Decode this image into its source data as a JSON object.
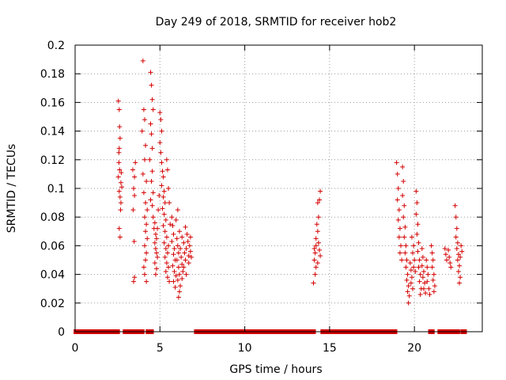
{
  "chart_data": {
    "type": "scatter",
    "title": "Day 249 of 2018, SRMTID for receiver hob2",
    "xlabel": "GPS time / hours",
    "ylabel": "SRMTID / TECUs",
    "xlim": [
      0,
      24
    ],
    "ylim": [
      0,
      0.2
    ],
    "x_ticks": [
      0,
      5,
      10,
      15,
      20
    ],
    "y_ticks": [
      0,
      0.02,
      0.04,
      0.06,
      0.08,
      0.1,
      0.12,
      0.14,
      0.16,
      0.18,
      0.2
    ],
    "x_tick_labels": [
      "0",
      "5",
      "10",
      "15",
      "20"
    ],
    "y_tick_labels": [
      "0",
      "0.02",
      "0.04",
      "0.06",
      "0.08",
      "0.1",
      "0.12",
      "0.14",
      "0.16",
      "0.18",
      "0.2"
    ],
    "grid": true,
    "marker": "+",
    "color": "#d40000",
    "zero_segments": [
      [
        0.05,
        2.5
      ],
      [
        2.95,
        3.3
      ],
      [
        3.55,
        3.95
      ],
      [
        4.3,
        4.5
      ],
      [
        7.15,
        14.05
      ],
      [
        14.6,
        18.85
      ],
      [
        20.95,
        21.05
      ],
      [
        21.5,
        21.85
      ],
      [
        22.0,
        22.15
      ],
      [
        22.25,
        22.35
      ],
      [
        22.45,
        22.55
      ],
      [
        22.85,
        22.95
      ]
    ],
    "series": [
      {
        "name": "SRMTID",
        "points": [
          [
            2.55,
            0.161
          ],
          [
            2.6,
            0.155
          ],
          [
            2.62,
            0.143
          ],
          [
            2.65,
            0.135
          ],
          [
            2.6,
            0.128
          ],
          [
            2.58,
            0.118
          ],
          [
            2.62,
            0.113
          ],
          [
            2.55,
            0.108
          ],
          [
            2.7,
            0.104
          ],
          [
            2.6,
            0.098
          ],
          [
            2.65,
            0.094
          ],
          [
            2.7,
            0.09
          ],
          [
            2.68,
            0.085
          ],
          [
            2.6,
            0.072
          ],
          [
            2.65,
            0.066
          ],
          [
            2.75,
            0.101
          ],
          [
            2.72,
            0.111
          ],
          [
            2.58,
            0.125
          ],
          [
            3.4,
            0.113
          ],
          [
            3.5,
            0.108
          ],
          [
            3.45,
            0.1
          ],
          [
            3.5,
            0.095
          ],
          [
            3.42,
            0.085
          ],
          [
            3.48,
            0.063
          ],
          [
            3.5,
            0.038
          ],
          [
            3.45,
            0.035
          ],
          [
            3.55,
            0.118
          ],
          [
            4.0,
            0.189
          ],
          [
            4.05,
            0.155
          ],
          [
            4.1,
            0.148
          ],
          [
            3.95,
            0.14
          ],
          [
            4.15,
            0.13
          ],
          [
            4.1,
            0.12
          ],
          [
            4.0,
            0.11
          ],
          [
            4.2,
            0.105
          ],
          [
            4.05,
            0.097
          ],
          [
            4.15,
            0.09
          ],
          [
            4.25,
            0.085
          ],
          [
            4.1,
            0.08
          ],
          [
            4.2,
            0.075
          ],
          [
            4.15,
            0.07
          ],
          [
            4.25,
            0.065
          ],
          [
            4.1,
            0.06
          ],
          [
            4.2,
            0.055
          ],
          [
            4.15,
            0.05
          ],
          [
            4.05,
            0.045
          ],
          [
            4.1,
            0.04
          ],
          [
            4.2,
            0.035
          ],
          [
            4.45,
            0.181
          ],
          [
            4.5,
            0.172
          ],
          [
            4.55,
            0.162
          ],
          [
            4.6,
            0.155
          ],
          [
            4.45,
            0.145
          ],
          [
            4.5,
            0.138
          ],
          [
            4.55,
            0.128
          ],
          [
            4.4,
            0.12
          ],
          [
            4.55,
            0.112
          ],
          [
            4.5,
            0.105
          ],
          [
            4.6,
            0.097
          ],
          [
            4.45,
            0.092
          ],
          [
            4.55,
            0.088
          ],
          [
            4.6,
            0.08
          ],
          [
            4.7,
            0.076
          ],
          [
            4.65,
            0.072
          ],
          [
            4.75,
            0.068
          ],
          [
            4.8,
            0.065
          ],
          [
            4.7,
            0.062
          ],
          [
            4.75,
            0.058
          ],
          [
            4.8,
            0.055
          ],
          [
            4.85,
            0.052
          ],
          [
            4.7,
            0.048
          ],
          [
            4.8,
            0.044
          ],
          [
            4.75,
            0.04
          ],
          [
            4.85,
            0.072
          ],
          [
            4.9,
            0.085
          ],
          [
            4.95,
            0.095
          ],
          [
            5.0,
            0.153
          ],
          [
            5.05,
            0.148
          ],
          [
            5.1,
            0.14
          ],
          [
            5.0,
            0.132
          ],
          [
            5.05,
            0.125
          ],
          [
            5.1,
            0.118
          ],
          [
            5.15,
            0.112
          ],
          [
            5.2,
            0.108
          ],
          [
            5.1,
            0.102
          ],
          [
            5.25,
            0.098
          ],
          [
            5.2,
            0.094
          ],
          [
            5.3,
            0.09
          ],
          [
            5.15,
            0.086
          ],
          [
            5.25,
            0.082
          ],
          [
            5.35,
            0.078
          ],
          [
            5.2,
            0.074
          ],
          [
            5.3,
            0.07
          ],
          [
            5.4,
            0.066
          ],
          [
            5.25,
            0.062
          ],
          [
            5.35,
            0.058
          ],
          [
            5.45,
            0.055
          ],
          [
            5.3,
            0.052
          ],
          [
            5.4,
            0.048
          ],
          [
            5.5,
            0.045
          ],
          [
            5.35,
            0.042
          ],
          [
            5.45,
            0.038
          ],
          [
            5.55,
            0.035
          ],
          [
            5.5,
            0.06
          ],
          [
            5.6,
            0.075
          ],
          [
            5.55,
            0.09
          ],
          [
            5.5,
            0.1
          ],
          [
            5.45,
            0.113
          ],
          [
            5.4,
            0.12
          ],
          [
            5.7,
            0.08
          ],
          [
            5.75,
            0.074
          ],
          [
            5.8,
            0.068
          ],
          [
            5.7,
            0.063
          ],
          [
            5.85,
            0.058
          ],
          [
            5.8,
            0.054
          ],
          [
            5.9,
            0.05
          ],
          [
            5.75,
            0.046
          ],
          [
            5.85,
            0.042
          ],
          [
            5.95,
            0.039
          ],
          [
            5.8,
            0.035
          ],
          [
            5.9,
            0.031
          ],
          [
            6.0,
            0.065
          ],
          [
            6.05,
            0.06
          ],
          [
            6.1,
            0.055
          ],
          [
            6.0,
            0.05
          ],
          [
            6.1,
            0.045
          ],
          [
            6.15,
            0.04
          ],
          [
            6.05,
            0.036
          ],
          [
            6.2,
            0.032
          ],
          [
            6.15,
            0.028
          ],
          [
            6.1,
            0.024
          ],
          [
            6.25,
            0.052
          ],
          [
            6.3,
            0.047
          ],
          [
            6.2,
            0.058
          ],
          [
            6.35,
            0.042
          ],
          [
            6.3,
            0.037
          ],
          [
            6.4,
            0.062
          ],
          [
            6.45,
            0.055
          ],
          [
            6.5,
            0.05
          ],
          [
            6.4,
            0.045
          ],
          [
            6.55,
            0.04
          ],
          [
            6.5,
            0.073
          ],
          [
            6.6,
            0.068
          ],
          [
            6.65,
            0.063
          ],
          [
            6.55,
            0.058
          ],
          [
            6.7,
            0.053
          ],
          [
            6.75,
            0.06
          ],
          [
            6.8,
            0.066
          ],
          [
            6.7,
            0.048
          ],
          [
            6.8,
            0.056
          ],
          [
            6.85,
            0.052
          ],
          [
            6.05,
            0.085
          ],
          [
            5.95,
            0.078
          ],
          [
            6.15,
            0.07
          ],
          [
            6.3,
            0.066
          ],
          [
            14.1,
            0.058
          ],
          [
            14.15,
            0.055
          ],
          [
            14.2,
            0.06
          ],
          [
            14.1,
            0.05
          ],
          [
            14.2,
            0.045
          ],
          [
            14.15,
            0.04
          ],
          [
            14.05,
            0.034
          ],
          [
            14.2,
            0.065
          ],
          [
            14.3,
            0.07
          ],
          [
            14.25,
            0.075
          ],
          [
            14.35,
            0.08
          ],
          [
            14.3,
            0.09
          ],
          [
            14.4,
            0.092
          ],
          [
            14.45,
            0.098
          ],
          [
            14.35,
            0.062
          ],
          [
            14.4,
            0.057
          ],
          [
            14.45,
            0.053
          ],
          [
            14.3,
            0.048
          ],
          [
            18.95,
            0.118
          ],
          [
            19.0,
            0.11
          ],
          [
            19.05,
            0.1
          ],
          [
            19.0,
            0.092
          ],
          [
            19.1,
            0.085
          ],
          [
            19.05,
            0.078
          ],
          [
            19.15,
            0.072
          ],
          [
            19.1,
            0.066
          ],
          [
            19.2,
            0.06
          ],
          [
            19.15,
            0.055
          ],
          [
            19.25,
            0.05
          ],
          [
            19.3,
            0.115
          ],
          [
            19.35,
            0.105
          ],
          [
            19.3,
            0.095
          ],
          [
            19.4,
            0.088
          ],
          [
            19.35,
            0.08
          ],
          [
            19.45,
            0.073
          ],
          [
            19.4,
            0.066
          ],
          [
            19.5,
            0.06
          ],
          [
            19.45,
            0.055
          ],
          [
            19.55,
            0.05
          ],
          [
            19.5,
            0.045
          ],
          [
            19.6,
            0.04
          ],
          [
            19.55,
            0.036
          ],
          [
            19.65,
            0.032
          ],
          [
            19.6,
            0.028
          ],
          [
            19.7,
            0.025
          ],
          [
            19.65,
            0.02
          ],
          [
            19.75,
            0.048
          ],
          [
            19.8,
            0.043
          ],
          [
            19.85,
            0.038
          ],
          [
            19.8,
            0.034
          ],
          [
            19.9,
            0.03
          ],
          [
            19.85,
            0.066
          ],
          [
            19.95,
            0.06
          ],
          [
            19.9,
            0.055
          ],
          [
            20.0,
            0.05
          ],
          [
            19.95,
            0.045
          ],
          [
            20.05,
            0.042
          ],
          [
            20.1,
            0.098
          ],
          [
            20.15,
            0.09
          ],
          [
            20.1,
            0.082
          ],
          [
            20.2,
            0.075
          ],
          [
            20.15,
            0.068
          ],
          [
            20.25,
            0.062
          ],
          [
            20.2,
            0.056
          ],
          [
            20.3,
            0.05
          ],
          [
            20.25,
            0.045
          ],
          [
            20.35,
            0.04
          ],
          [
            20.3,
            0.035
          ],
          [
            20.4,
            0.03
          ],
          [
            20.35,
            0.026
          ],
          [
            20.45,
            0.058
          ],
          [
            20.5,
            0.052
          ],
          [
            20.45,
            0.046
          ],
          [
            20.55,
            0.042
          ],
          [
            20.5,
            0.038
          ],
          [
            20.6,
            0.034
          ],
          [
            20.55,
            0.03
          ],
          [
            20.65,
            0.027
          ],
          [
            20.7,
            0.05
          ],
          [
            20.75,
            0.045
          ],
          [
            20.8,
            0.04
          ],
          [
            20.75,
            0.035
          ],
          [
            20.85,
            0.03
          ],
          [
            20.9,
            0.026
          ],
          [
            21.0,
            0.06
          ],
          [
            21.05,
            0.055
          ],
          [
            21.1,
            0.05
          ],
          [
            21.05,
            0.045
          ],
          [
            21.15,
            0.04
          ],
          [
            21.1,
            0.036
          ],
          [
            21.2,
            0.032
          ],
          [
            21.15,
            0.028
          ],
          [
            21.8,
            0.058
          ],
          [
            21.85,
            0.054
          ],
          [
            21.9,
            0.05
          ],
          [
            22.0,
            0.057
          ],
          [
            22.05,
            0.052
          ],
          [
            22.1,
            0.048
          ],
          [
            22.15,
            0.045
          ],
          [
            22.4,
            0.088
          ],
          [
            22.45,
            0.08
          ],
          [
            22.5,
            0.072
          ],
          [
            22.45,
            0.066
          ],
          [
            22.55,
            0.062
          ],
          [
            22.5,
            0.058
          ],
          [
            22.6,
            0.054
          ],
          [
            22.55,
            0.05
          ],
          [
            22.65,
            0.046
          ],
          [
            22.6,
            0.042
          ],
          [
            22.7,
            0.038
          ],
          [
            22.65,
            0.034
          ],
          [
            22.75,
            0.06
          ],
          [
            22.8,
            0.056
          ],
          [
            22.7,
            0.052
          ]
        ]
      }
    ]
  }
}
